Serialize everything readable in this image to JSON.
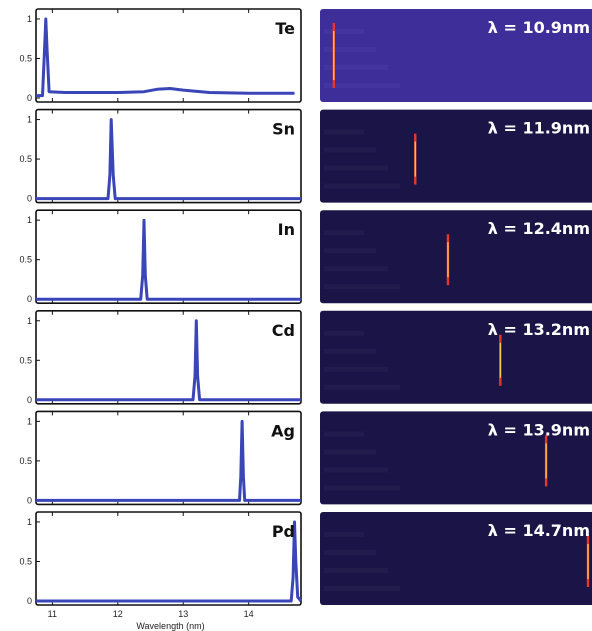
{
  "chart_data": {
    "type": "line",
    "x_axis": {
      "label": "Wavelength (nm)",
      "range": [
        10.75,
        14.8
      ],
      "ticks": [
        11,
        12,
        13,
        14
      ],
      "tick_labels": [
        "11",
        "12",
        "13",
        "14"
      ]
    },
    "y_axis": {
      "range": [
        0,
        1.05
      ],
      "ticks": [
        0,
        0.5,
        1
      ],
      "tick_labels": [
        "0",
        "0.5",
        "1"
      ]
    },
    "line_color": "#3a46b8",
    "series": [
      {
        "name": "Te",
        "peak_nm": 10.9,
        "peak_value": 1.0,
        "lambda_label": "λ = 10.9nm",
        "points": [
          [
            10.75,
            0.03
          ],
          [
            10.85,
            0.03
          ],
          [
            10.88,
            0.6
          ],
          [
            10.9,
            1.0
          ],
          [
            10.92,
            0.6
          ],
          [
            10.95,
            0.08
          ],
          [
            11.2,
            0.07
          ],
          [
            11.6,
            0.07
          ],
          [
            12.0,
            0.07
          ],
          [
            12.4,
            0.08
          ],
          [
            12.6,
            0.11
          ],
          [
            12.8,
            0.12
          ],
          [
            13.0,
            0.1
          ],
          [
            13.4,
            0.07
          ],
          [
            14.0,
            0.06
          ],
          [
            14.7,
            0.06
          ]
        ]
      },
      {
        "name": "Sn",
        "peak_nm": 11.9,
        "peak_value": 1.0,
        "lambda_label": "λ = 11.9nm",
        "points": [
          [
            10.75,
            0.0
          ],
          [
            11.85,
            0.0
          ],
          [
            11.88,
            0.3
          ],
          [
            11.9,
            1.0
          ],
          [
            11.93,
            0.3
          ],
          [
            11.96,
            0.0
          ],
          [
            14.8,
            0.0
          ]
        ]
      },
      {
        "name": "In",
        "peak_nm": 12.4,
        "peak_value": 1.0,
        "lambda_label": "λ = 12.4nm",
        "points": [
          [
            10.75,
            0.0
          ],
          [
            12.35,
            0.0
          ],
          [
            12.38,
            0.3
          ],
          [
            12.4,
            1.0
          ],
          [
            12.42,
            0.3
          ],
          [
            12.45,
            0.0
          ],
          [
            14.8,
            0.0
          ]
        ]
      },
      {
        "name": "Cd",
        "peak_nm": 13.2,
        "peak_value": 1.0,
        "lambda_label": "λ = 13.2nm",
        "points": [
          [
            10.75,
            0.0
          ],
          [
            13.15,
            0.0
          ],
          [
            13.18,
            0.3
          ],
          [
            13.2,
            1.0
          ],
          [
            13.22,
            0.3
          ],
          [
            13.25,
            0.0
          ],
          [
            14.8,
            0.0
          ]
        ]
      },
      {
        "name": "Ag",
        "peak_nm": 13.9,
        "peak_value": 1.0,
        "lambda_label": "λ = 13.9nm",
        "points": [
          [
            10.75,
            0.0
          ],
          [
            13.86,
            0.0
          ],
          [
            13.88,
            0.3
          ],
          [
            13.9,
            1.0
          ],
          [
            13.92,
            0.3
          ],
          [
            13.94,
            0.0
          ],
          [
            14.8,
            0.0
          ]
        ]
      },
      {
        "name": "Pd",
        "peak_nm": 14.7,
        "peak_value": 1.0,
        "lambda_label": "λ = 14.7nm",
        "points": [
          [
            10.75,
            0.0
          ],
          [
            14.65,
            0.0
          ],
          [
            14.68,
            0.3
          ],
          [
            14.7,
            1.0
          ],
          [
            14.72,
            0.5
          ],
          [
            14.75,
            0.05
          ],
          [
            14.8,
            0.0
          ]
        ]
      }
    ],
    "image_panels": {
      "colors": {
        "background": "#1a1447",
        "te_background": "#3d2e9a",
        "line_core": "#ffd84a",
        "line_edge": "#e8362a",
        "line_glow": "#2ec7e0"
      }
    }
  }
}
